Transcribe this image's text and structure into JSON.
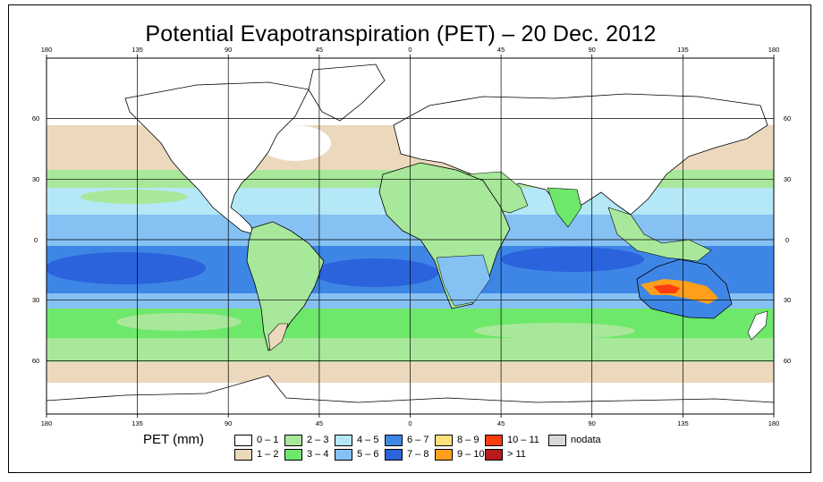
{
  "title": "Potential Evapotranspiration (PET) – 20 Dec. 2012",
  "x_ticks": [
    "180",
    "135",
    "90",
    "45",
    "0",
    "45",
    "90",
    "135",
    "180"
  ],
  "y_ticks": [
    "60",
    "30",
    "0",
    "30",
    "60"
  ],
  "legend": {
    "label": "PET (mm)",
    "items": [
      {
        "text": "0 – 1",
        "color": "#ffffff"
      },
      {
        "text": "1 – 2",
        "color": "#ecd9bd"
      },
      {
        "text": "2 – 3",
        "color": "#a8e89a"
      },
      {
        "text": "3 – 4",
        "color": "#6de86b"
      },
      {
        "text": "4 – 5",
        "color": "#b4e8f6"
      },
      {
        "text": "5 – 6",
        "color": "#86c1f4"
      },
      {
        "text": "6 – 7",
        "color": "#3e86e6"
      },
      {
        "text": "7 – 8",
        "color": "#2a63dc"
      },
      {
        "text": "8 – 9",
        "color": "#ffe07a"
      },
      {
        "text": "9 – 10",
        "color": "#ff9f1c"
      },
      {
        "text": "10 – 11",
        "color": "#ff3b10"
      },
      {
        "text": "> 11",
        "color": "#b51b1b"
      },
      {
        "text": "nodata",
        "color": "#d8d8d8"
      }
    ]
  }
}
